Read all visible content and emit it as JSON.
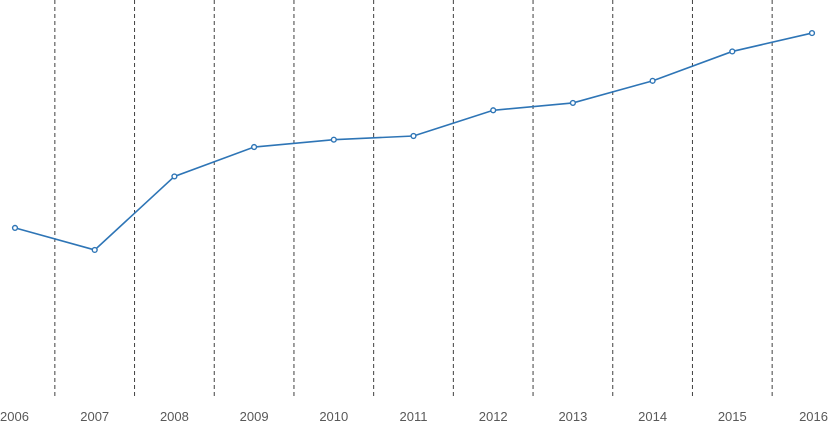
{
  "chart_data": {
    "type": "line",
    "x": [
      "2006",
      "2007",
      "2008",
      "2009",
      "2010",
      "2011",
      "2012",
      "2013",
      "2014",
      "2015",
      "2016"
    ],
    "series": [
      {
        "values": [
          0.46,
          0.4,
          0.6,
          0.68,
          0.7,
          0.71,
          0.78,
          0.8,
          0.86,
          0.94,
          0.99
        ]
      }
    ],
    "ylim": [
      0,
      1
    ],
    "grid": {
      "vertical": true,
      "horizontal": false,
      "style": "dashed"
    },
    "legend": "none",
    "colors": {
      "series": "#2e75b6",
      "grid": "#404040",
      "tick_text": "#595959"
    }
  }
}
